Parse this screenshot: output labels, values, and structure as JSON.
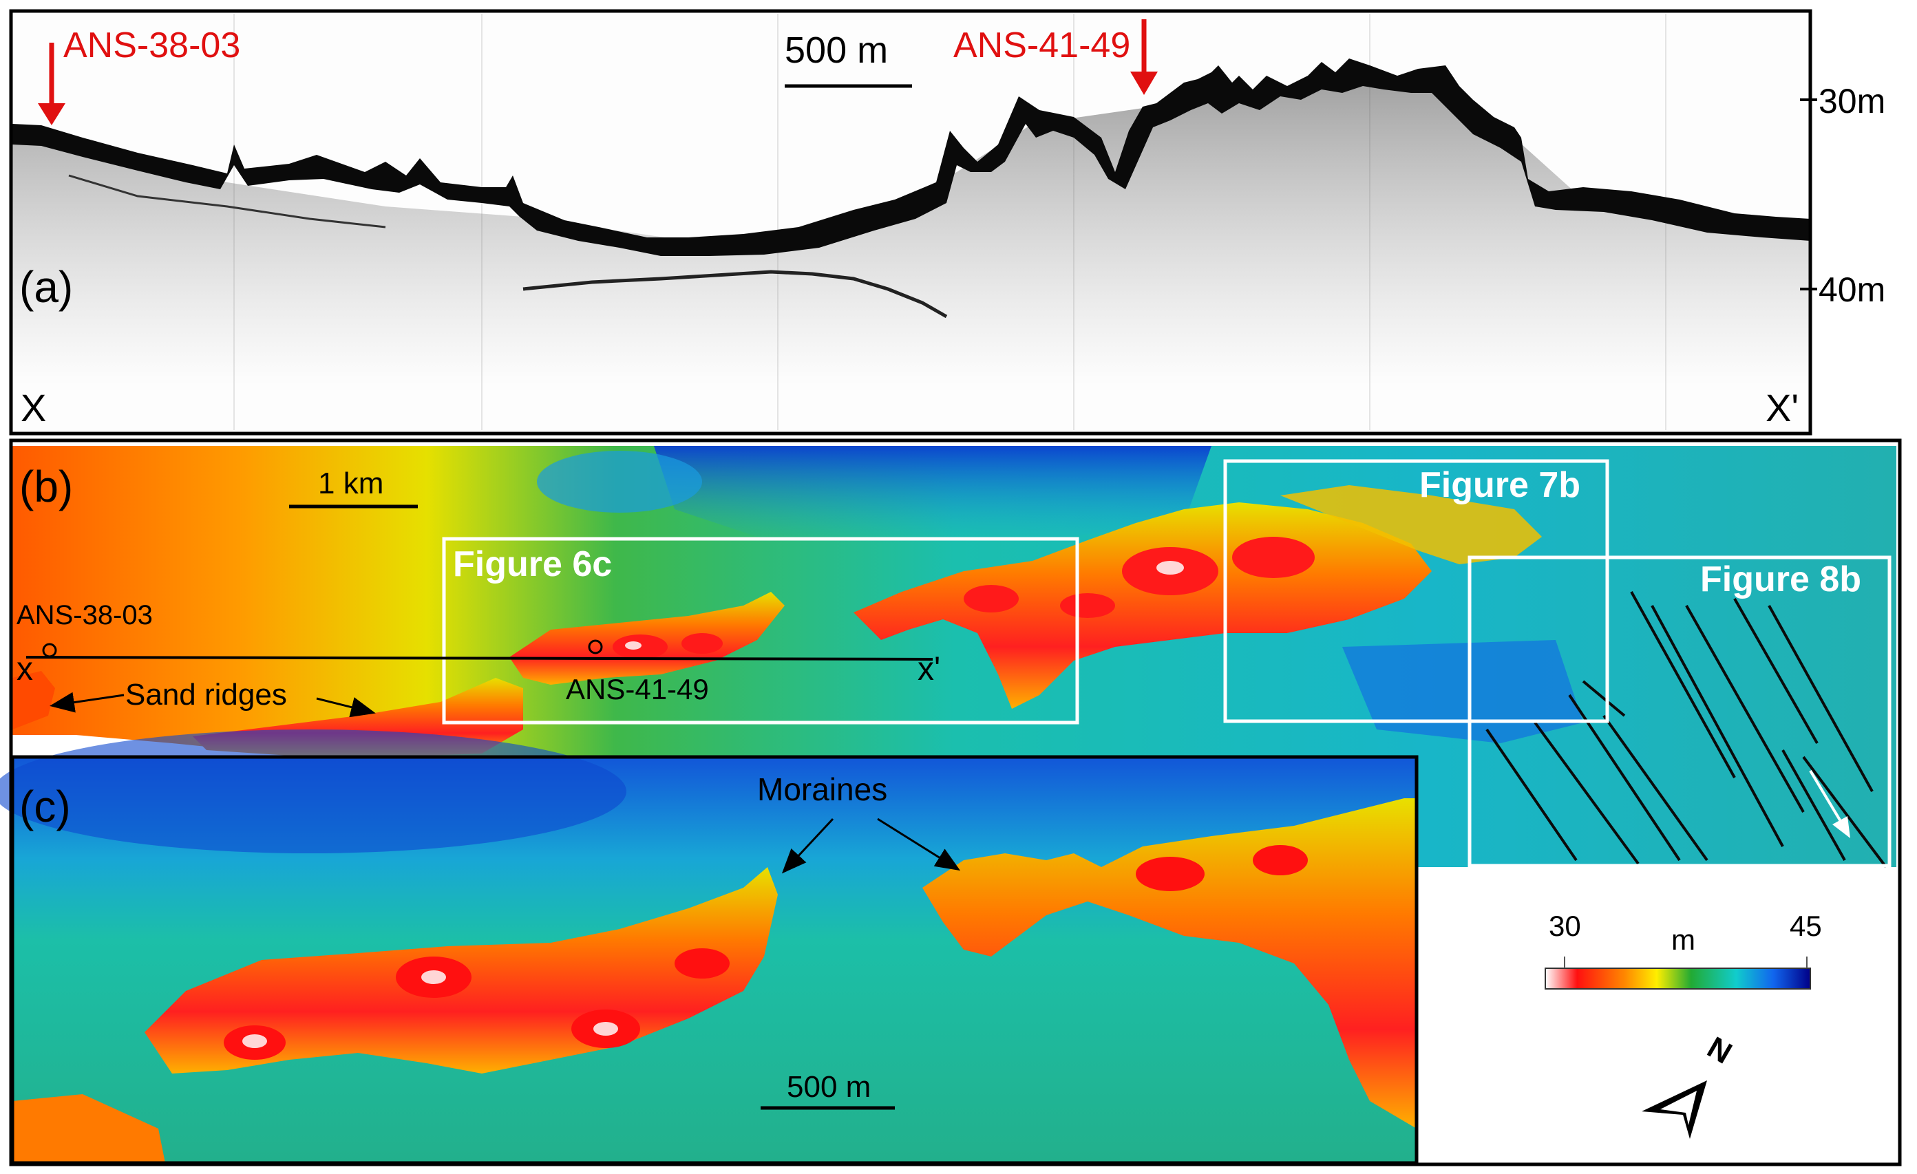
{
  "panel_a": {
    "label": "(a)",
    "scale_label": "500 m",
    "core_left": "ANS-38-03",
    "core_right": "ANS-41-49",
    "depth_ticks": [
      "30m",
      "40m"
    ],
    "end_left": "X",
    "end_right": "X'"
  },
  "panel_b": {
    "label": "(b)",
    "scale_label": "1 km",
    "box_6c": "Figure 6c",
    "box_7b": "Figure 7b",
    "box_8b": "Figure 8b",
    "core_left": "ANS-38-03",
    "core_right": "ANS-41-49",
    "x_left": "x",
    "x_right": "x'",
    "sand_ridges": "Sand ridges"
  },
  "panel_c": {
    "label": "(c)",
    "moraines": "Moraines",
    "scale_label": "500 m"
  },
  "legend": {
    "min": "30",
    "max": "45",
    "unit": "m",
    "north": "N",
    "colors": [
      "#ffffff",
      "#ff1010",
      "#ff8800",
      "#ffee00",
      "#22aa33",
      "#11cccc",
      "#1166ee",
      "#000088"
    ]
  },
  "colors": {
    "arrow_red": "#e01010",
    "label_red": "#e01010"
  }
}
